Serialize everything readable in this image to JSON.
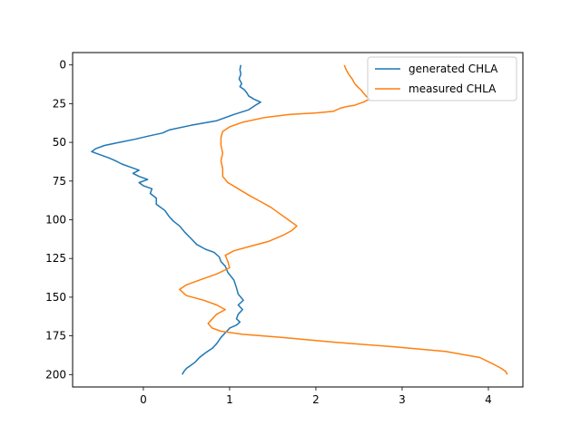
{
  "chart_data": {
    "type": "line",
    "title": "",
    "xlabel": "",
    "ylabel": "",
    "xlim": [
      -0.82,
      4.4
    ],
    "ylim": [
      208,
      -8
    ],
    "y_inverted": true,
    "grid": false,
    "legend_position": "top-right",
    "x_ticks": [
      0,
      1,
      2,
      3,
      4
    ],
    "y_ticks": [
      0,
      25,
      50,
      75,
      100,
      125,
      150,
      175,
      200
    ],
    "series": [
      {
        "name": "generated CHLA",
        "color": "#1f77b4",
        "points": [
          [
            1.13,
            0
          ],
          [
            1.12,
            3
          ],
          [
            1.13,
            6
          ],
          [
            1.11,
            9
          ],
          [
            1.14,
            12
          ],
          [
            1.12,
            14
          ],
          [
            1.17,
            16
          ],
          [
            1.2,
            18
          ],
          [
            1.22,
            20
          ],
          [
            1.28,
            22
          ],
          [
            1.36,
            24
          ],
          [
            1.3,
            26
          ],
          [
            1.22,
            29
          ],
          [
            1.05,
            32
          ],
          [
            0.85,
            36
          ],
          [
            0.55,
            39
          ],
          [
            0.3,
            42
          ],
          [
            0.22,
            44
          ],
          [
            0.05,
            46
          ],
          [
            -0.1,
            48
          ],
          [
            -0.28,
            50
          ],
          [
            -0.45,
            52
          ],
          [
            -0.55,
            54
          ],
          [
            -0.6,
            56
          ],
          [
            -0.5,
            58
          ],
          [
            -0.4,
            60
          ],
          [
            -0.32,
            62
          ],
          [
            -0.25,
            64
          ],
          [
            -0.15,
            66
          ],
          [
            -0.05,
            68
          ],
          [
            -0.12,
            70
          ],
          [
            -0.05,
            72
          ],
          [
            0.05,
            74
          ],
          [
            -0.05,
            76
          ],
          [
            0.0,
            78
          ],
          [
            0.1,
            80
          ],
          [
            0.08,
            83
          ],
          [
            0.15,
            86
          ],
          [
            0.15,
            90
          ],
          [
            0.25,
            94
          ],
          [
            0.3,
            98
          ],
          [
            0.35,
            101
          ],
          [
            0.42,
            104
          ],
          [
            0.48,
            108
          ],
          [
            0.55,
            112
          ],
          [
            0.62,
            116
          ],
          [
            0.72,
            119
          ],
          [
            0.82,
            121
          ],
          [
            0.88,
            124
          ],
          [
            0.9,
            127
          ],
          [
            0.95,
            130
          ],
          [
            0.98,
            134
          ],
          [
            1.05,
            139
          ],
          [
            1.08,
            144
          ],
          [
            1.1,
            148
          ],
          [
            1.16,
            152
          ],
          [
            1.1,
            155
          ],
          [
            1.15,
            158
          ],
          [
            1.1,
            161
          ],
          [
            1.08,
            164
          ],
          [
            1.12,
            166
          ],
          [
            1.08,
            168
          ],
          [
            1.0,
            170
          ],
          [
            0.95,
            173
          ],
          [
            0.9,
            176
          ],
          [
            0.85,
            180
          ],
          [
            0.8,
            183
          ],
          [
            0.72,
            186
          ],
          [
            0.65,
            189
          ],
          [
            0.6,
            192
          ],
          [
            0.55,
            194
          ],
          [
            0.5,
            196
          ],
          [
            0.47,
            198
          ],
          [
            0.45,
            200
          ]
        ]
      },
      {
        "name": "measured CHLA",
        "color": "#ff7f0e",
        "points": [
          [
            2.33,
            0
          ],
          [
            2.35,
            3
          ],
          [
            2.38,
            6
          ],
          [
            2.42,
            9
          ],
          [
            2.45,
            12
          ],
          [
            2.48,
            14
          ],
          [
            2.52,
            16
          ],
          [
            2.55,
            18
          ],
          [
            2.58,
            20
          ],
          [
            2.62,
            22
          ],
          [
            2.55,
            24
          ],
          [
            2.45,
            26
          ],
          [
            2.35,
            27
          ],
          [
            2.28,
            28
          ],
          [
            2.2,
            30
          ],
          [
            2.0,
            31
          ],
          [
            1.7,
            32
          ],
          [
            1.4,
            34
          ],
          [
            1.15,
            37
          ],
          [
            1.0,
            40
          ],
          [
            0.92,
            43
          ],
          [
            0.9,
            47
          ],
          [
            0.9,
            52
          ],
          [
            0.92,
            57
          ],
          [
            0.9,
            62
          ],
          [
            0.92,
            67
          ],
          [
            0.92,
            72
          ],
          [
            0.98,
            76
          ],
          [
            1.1,
            80
          ],
          [
            1.22,
            84
          ],
          [
            1.35,
            88
          ],
          [
            1.48,
            92
          ],
          [
            1.58,
            96
          ],
          [
            1.68,
            100
          ],
          [
            1.78,
            104
          ],
          [
            1.72,
            107
          ],
          [
            1.62,
            110
          ],
          [
            1.45,
            114
          ],
          [
            1.25,
            117
          ],
          [
            1.05,
            120
          ],
          [
            0.95,
            123
          ],
          [
            0.98,
            127
          ],
          [
            1.0,
            131
          ],
          [
            0.85,
            135
          ],
          [
            0.65,
            139
          ],
          [
            0.5,
            142
          ],
          [
            0.42,
            145
          ],
          [
            0.5,
            149
          ],
          [
            0.7,
            152
          ],
          [
            0.85,
            155
          ],
          [
            0.95,
            158
          ],
          [
            0.85,
            161
          ],
          [
            0.8,
            164
          ],
          [
            0.75,
            167
          ],
          [
            0.8,
            170
          ],
          [
            0.9,
            172
          ],
          [
            1.15,
            174
          ],
          [
            1.6,
            176
          ],
          [
            2.2,
            179
          ],
          [
            2.9,
            182
          ],
          [
            3.5,
            185
          ],
          [
            3.9,
            189
          ],
          [
            4.05,
            193
          ],
          [
            4.15,
            196
          ],
          [
            4.2,
            198
          ],
          [
            4.22,
            200
          ]
        ]
      }
    ]
  }
}
